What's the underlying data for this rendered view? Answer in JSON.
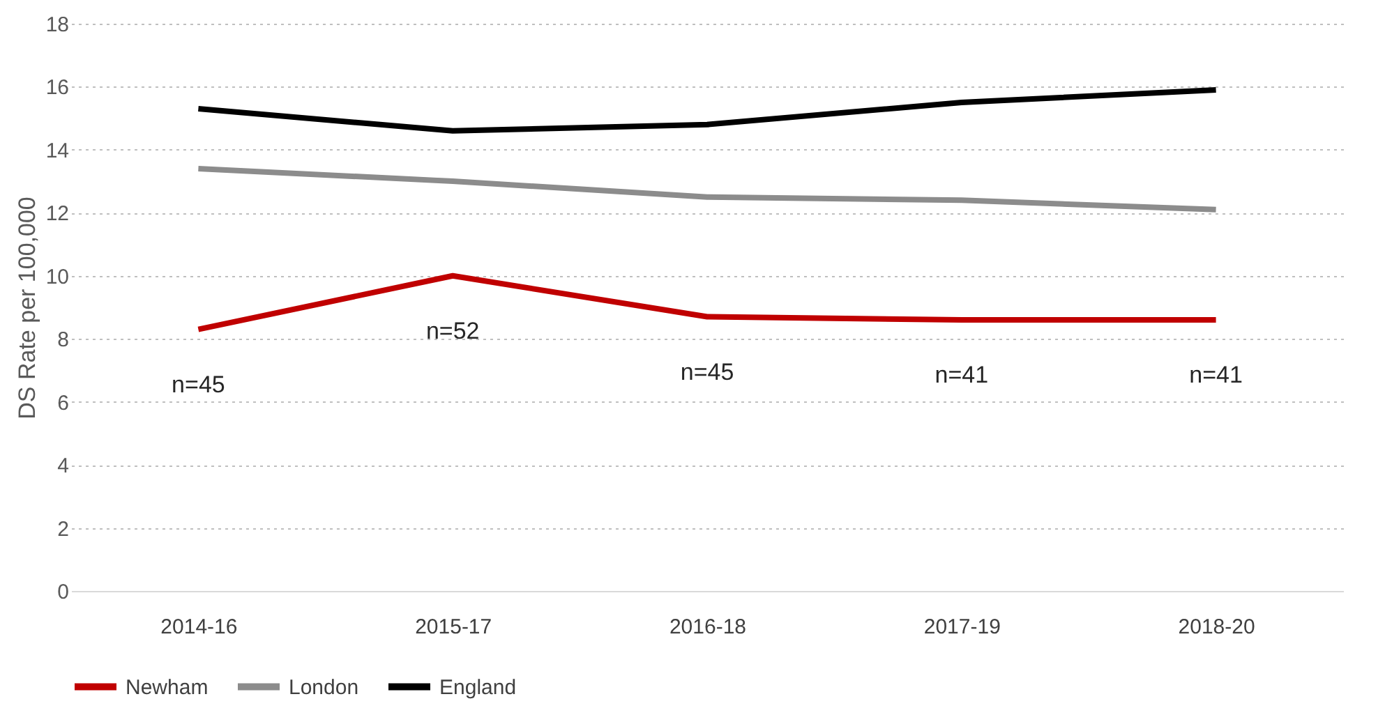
{
  "chart_data": {
    "type": "line",
    "ylabel": "DS Rate per 100,000",
    "categories": [
      "2014-16",
      "2015-17",
      "2016-18",
      "2017-19",
      "2018-20"
    ],
    "series": [
      {
        "name": "Newham",
        "color": "#c00000",
        "values": [
          8.3,
          10.0,
          8.7,
          8.6,
          8.6
        ]
      },
      {
        "name": "London",
        "color": "#8c8c8c",
        "values": [
          13.4,
          13.0,
          12.5,
          12.4,
          12.1
        ]
      },
      {
        "name": "England",
        "color": "#000000",
        "values": [
          15.3,
          14.6,
          14.8,
          15.5,
          15.9
        ]
      }
    ],
    "annotations": [
      "n=45",
      "n=52",
      "n=45",
      "n=41",
      "n=41"
    ],
    "ylim": [
      0,
      18
    ],
    "yticks": [
      0,
      2,
      4,
      6,
      8,
      10,
      12,
      14,
      16,
      18
    ],
    "grid": "y",
    "legend": "bottom",
    "marker": "none",
    "line_style": "solid"
  }
}
